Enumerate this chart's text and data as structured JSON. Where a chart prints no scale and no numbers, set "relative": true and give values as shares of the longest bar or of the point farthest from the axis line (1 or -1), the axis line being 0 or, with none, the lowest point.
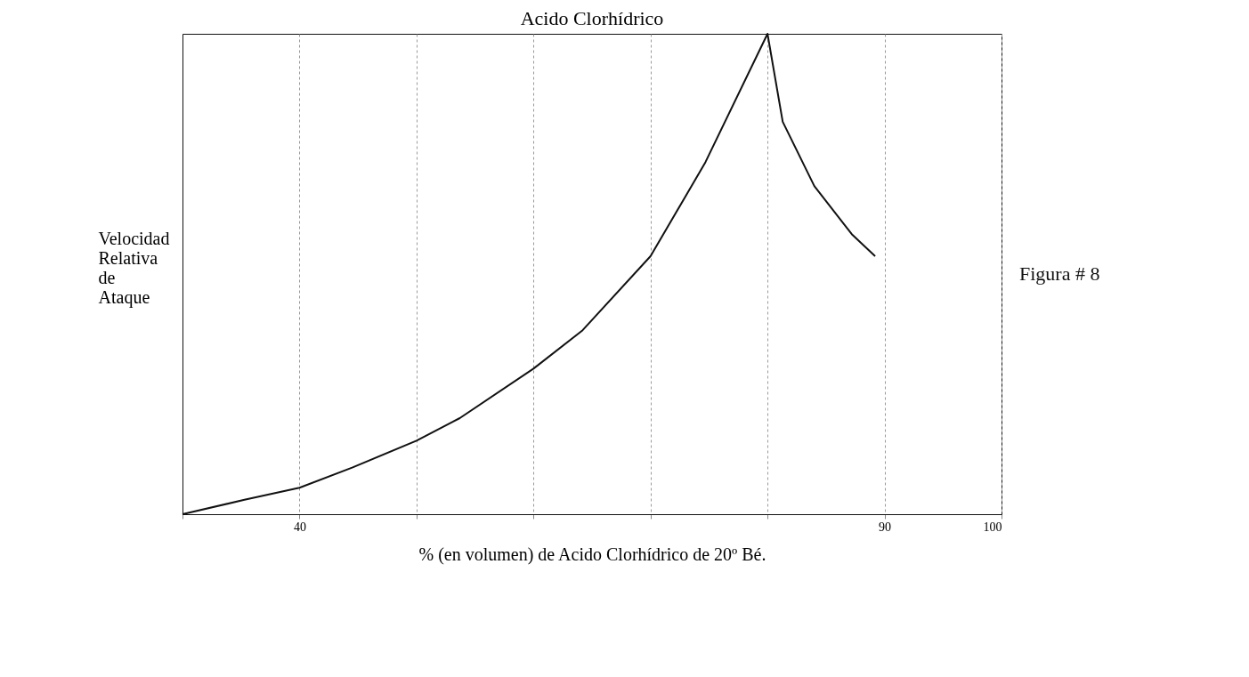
{
  "chart_data": {
    "type": "line",
    "title": "Acido Clorhídrico",
    "xlabel": "% (en volumen) de Acido Clorhídrico de 20º Bé.",
    "ylabel": "Velocidad Relativa de Ataque",
    "annotations": [
      "Figura # 8"
    ],
    "relative": true,
    "x": [
      30,
      35.3,
      40,
      44.5,
      50,
      53.7,
      60,
      64.2,
      70,
      74.7,
      80,
      81.3,
      84,
      87.2,
      89.2
    ],
    "series": [
      {
        "color": "#111111",
        "values": [
          0,
          0.03,
          0.055,
          0.097,
          0.153,
          0.2,
          0.303,
          0.383,
          0.537,
          0.733,
          1,
          0.817,
          0.683,
          0.583,
          0.537
        ]
      }
    ],
    "xlim": [
      30,
      100
    ],
    "xticks": [
      {
        "value": 30,
        "label": null
      },
      40,
      {
        "value": 50,
        "label": null
      },
      {
        "value": 60,
        "label": null
      },
      {
        "value": 70,
        "label": null
      },
      {
        "value": 80,
        "label": null
      },
      90,
      100
    ],
    "grid": "x",
    "line_style": "solid",
    "marker": "none"
  }
}
